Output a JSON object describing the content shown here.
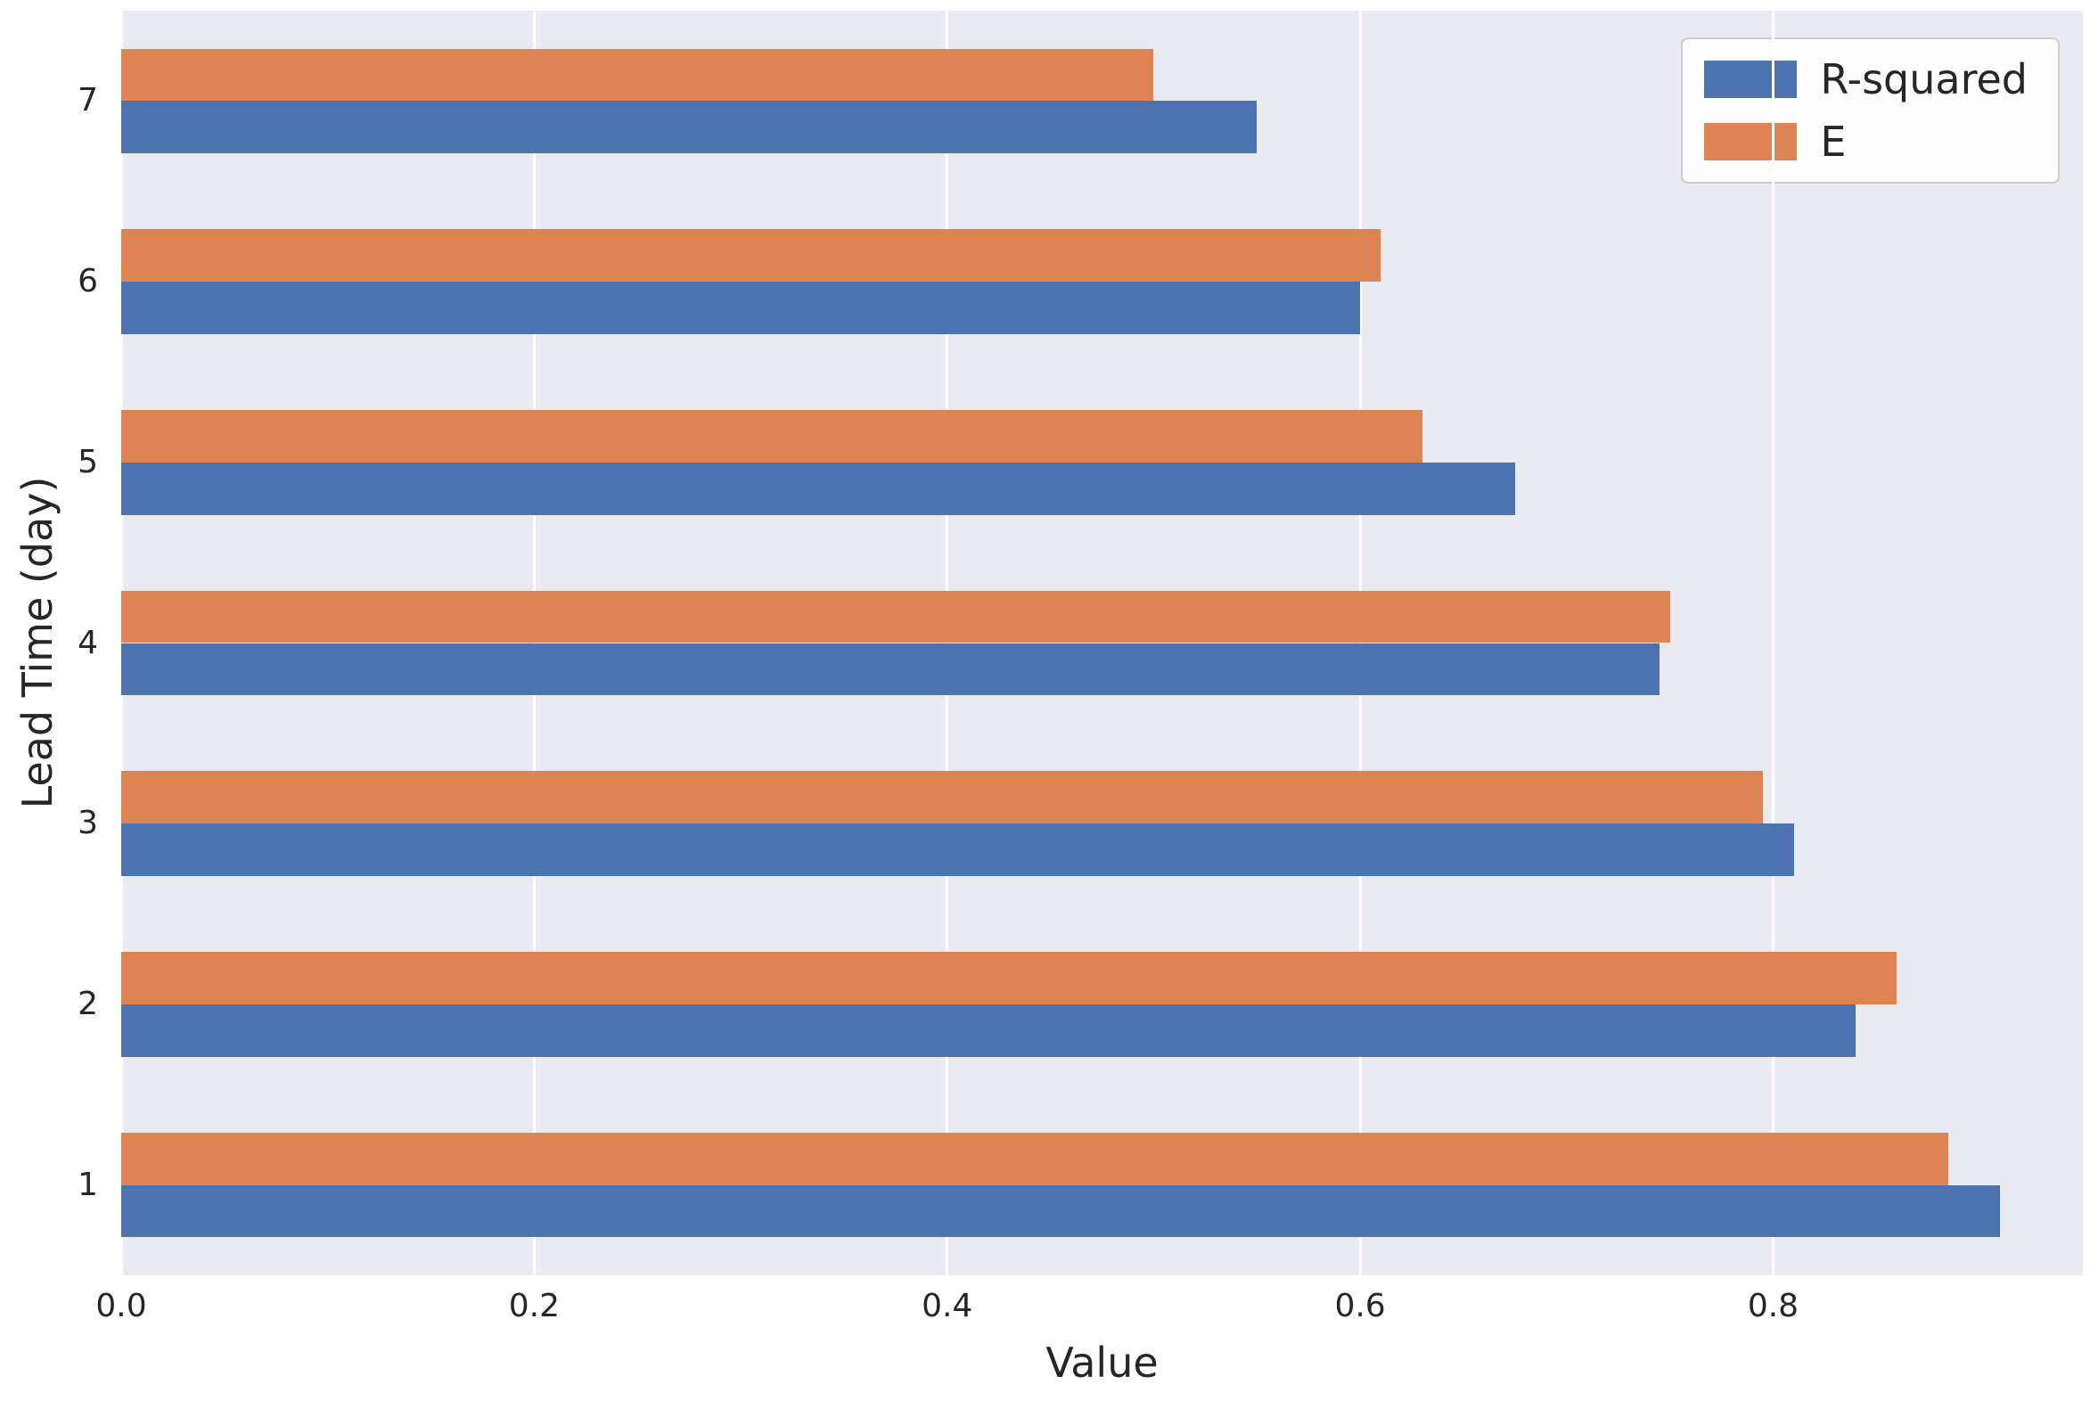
{
  "chart_data": {
    "type": "bar",
    "orientation": "horizontal",
    "title": "",
    "xlabel": "Value",
    "ylabel": "Lead Time (day)",
    "categories": [
      "1",
      "2",
      "3",
      "4",
      "5",
      "6",
      "7"
    ],
    "series": [
      {
        "name": "R-squared",
        "color": "#4c72b0",
        "values": [
          0.91,
          0.84,
          0.81,
          0.745,
          0.675,
          0.6,
          0.55
        ]
      },
      {
        "name": "E",
        "color": "#dd8452",
        "values": [
          0.885,
          0.86,
          0.795,
          0.75,
          0.63,
          0.61,
          0.5
        ]
      }
    ],
    "xlim": [
      0,
      0.95
    ],
    "xticks": [
      0.0,
      0.2,
      0.4,
      0.6,
      0.8
    ],
    "xticklabels": [
      "0.0",
      "0.2",
      "0.4",
      "0.6",
      "0.8"
    ],
    "grid": true,
    "legend_position": "upper right",
    "plot_background": "#eaeaf2",
    "gridline_color": "#ffffff"
  }
}
